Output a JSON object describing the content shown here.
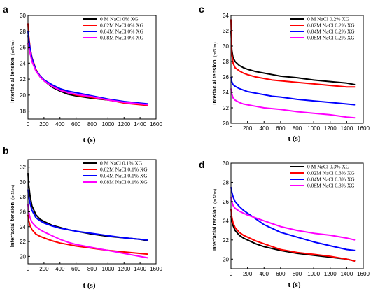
{
  "chart_data": [
    {
      "panel": "a",
      "type": "line",
      "xlabel": "t (s)",
      "ylabel": "Interfacial tension",
      "yunit": "(mN/m)",
      "xlim": [
        0,
        1600
      ],
      "ylim": [
        17,
        30
      ],
      "xticks": [
        0,
        200,
        400,
        600,
        800,
        1000,
        1200,
        1400,
        1600
      ],
      "yticks": [
        18,
        20,
        22,
        24,
        26,
        28,
        30
      ],
      "legend_position": "top-right",
      "series": [
        {
          "name": "0    M NaCl 0% XG",
          "color": "#000000",
          "x": [
            0,
            10,
            25,
            50,
            100,
            150,
            200,
            300,
            400,
            500,
            600,
            800,
            1000,
            1200,
            1400,
            1500
          ],
          "y": [
            27.5,
            26.8,
            25.8,
            24.6,
            23.1,
            22.3,
            21.8,
            21.0,
            20.5,
            20.1,
            19.9,
            19.6,
            19.4,
            19.1,
            18.9,
            18.8
          ]
        },
        {
          "name": "0.02M NaCl 0% XG",
          "color": "#ff0000",
          "x": [
            0,
            10,
            25,
            50,
            100,
            150,
            200,
            300,
            400,
            500,
            600,
            800,
            1000,
            1200,
            1400,
            1500
          ],
          "y": [
            29.0,
            27.4,
            26.0,
            24.7,
            23.2,
            22.4,
            21.9,
            21.2,
            20.7,
            20.3,
            20.0,
            19.7,
            19.4,
            19.0,
            18.8,
            18.7
          ]
        },
        {
          "name": "0.04M NaCl 0% XG",
          "color": "#0000ff",
          "x": [
            0,
            10,
            25,
            50,
            100,
            150,
            200,
            300,
            400,
            500,
            600,
            800,
            1000,
            1200,
            1400,
            1500
          ],
          "y": [
            28.0,
            27.0,
            25.9,
            24.6,
            23.1,
            22.4,
            21.9,
            21.3,
            20.8,
            20.5,
            20.3,
            19.9,
            19.5,
            19.2,
            19.0,
            18.9
          ]
        },
        {
          "name": "0.08M NaCl 0% XG",
          "color": "#ff00ff",
          "x": [
            0,
            10,
            25,
            50,
            100,
            150,
            200,
            300,
            400,
            500,
            600,
            800,
            1000,
            1200,
            1400,
            1500
          ],
          "y": [
            26.5,
            26.0,
            25.3,
            24.2,
            23.0,
            22.3,
            21.8,
            21.1,
            20.6,
            20.3,
            20.1,
            19.8,
            19.4,
            19.1,
            18.9,
            18.8
          ]
        }
      ]
    },
    {
      "panel": "b",
      "type": "line",
      "xlabel": "t (s)",
      "ylabel": "Interfacial tension",
      "yunit": "(mN/m)",
      "xlim": [
        0,
        1600
      ],
      "ylim": [
        19,
        33
      ],
      "xticks": [
        0,
        200,
        400,
        600,
        800,
        1000,
        1200,
        1400,
        1600
      ],
      "yticks": [
        20,
        22,
        24,
        26,
        28,
        30,
        32
      ],
      "legend_position": "top-right",
      "series": [
        {
          "name": "0    M NaCl 0.1% XG",
          "color": "#000000",
          "x": [
            0,
            10,
            25,
            50,
            100,
            150,
            200,
            300,
            400,
            500,
            600,
            800,
            1000,
            1200,
            1400,
            1500
          ],
          "y": [
            31.2,
            29.6,
            28.2,
            26.8,
            25.6,
            25.0,
            24.7,
            24.2,
            23.9,
            23.6,
            23.4,
            23.0,
            22.7,
            22.5,
            22.3,
            22.1
          ]
        },
        {
          "name": "0.02M NaCl 0.1% XG",
          "color": "#ff0000",
          "x": [
            0,
            10,
            25,
            50,
            100,
            150,
            200,
            300,
            400,
            500,
            600,
            800,
            1000,
            1200,
            1400,
            1500
          ],
          "y": [
            25.6,
            24.8,
            24.2,
            23.6,
            23.0,
            22.7,
            22.5,
            22.1,
            21.8,
            21.6,
            21.4,
            21.1,
            20.8,
            20.6,
            20.4,
            20.3
          ]
        },
        {
          "name": "0.04M NaCl 0.1% XG",
          "color": "#0000ff",
          "x": [
            0,
            10,
            25,
            50,
            100,
            150,
            200,
            300,
            400,
            500,
            600,
            800,
            1000,
            1200,
            1400,
            1500
          ],
          "y": [
            29.0,
            28.0,
            27.2,
            26.2,
            25.2,
            24.8,
            24.5,
            24.1,
            23.8,
            23.6,
            23.4,
            23.1,
            22.8,
            22.5,
            22.3,
            22.2
          ]
        },
        {
          "name": "0.08M NaCl 0.1% XG",
          "color": "#ff00ff",
          "x": [
            0,
            10,
            25,
            50,
            100,
            150,
            200,
            300,
            400,
            500,
            600,
            800,
            1000,
            1200,
            1400,
            1500
          ],
          "y": [
            27.0,
            26.0,
            25.2,
            24.6,
            24.0,
            23.6,
            23.3,
            22.8,
            22.3,
            21.9,
            21.6,
            21.2,
            20.8,
            20.4,
            20.0,
            19.8
          ]
        }
      ]
    },
    {
      "panel": "c",
      "type": "line",
      "xlabel": "t (s)",
      "ylabel": "Interfacial tension",
      "yunit": "(mN/m)",
      "xlim": [
        0,
        1600
      ],
      "ylim": [
        20,
        34
      ],
      "xticks": [
        0,
        200,
        400,
        600,
        800,
        1000,
        1200,
        1400,
        1600
      ],
      "yticks": [
        20,
        22,
        24,
        26,
        28,
        30,
        32,
        34
      ],
      "legend_position": "top-right",
      "series": [
        {
          "name": "0    M NaCl 0.2% XG",
          "color": "#000000",
          "x": [
            0,
            10,
            25,
            50,
            100,
            150,
            200,
            300,
            400,
            500,
            600,
            800,
            1000,
            1200,
            1400,
            1500
          ],
          "y": [
            32.0,
            29.5,
            28.5,
            28.0,
            27.5,
            27.2,
            27.0,
            26.7,
            26.5,
            26.3,
            26.1,
            25.9,
            25.6,
            25.4,
            25.2,
            25.0
          ]
        },
        {
          "name": "0.02M NaCl 0.2% XG",
          "color": "#ff0000",
          "x": [
            0,
            10,
            25,
            50,
            100,
            150,
            200,
            300,
            400,
            500,
            600,
            800,
            1000,
            1200,
            1400,
            1500
          ],
          "y": [
            33.5,
            29.0,
            27.8,
            27.2,
            26.8,
            26.5,
            26.3,
            26.0,
            25.8,
            25.6,
            25.5,
            25.3,
            25.1,
            24.9,
            24.7,
            24.7
          ]
        },
        {
          "name": "0.04M NaCl 0.2% XG",
          "color": "#0000ff",
          "x": [
            0,
            10,
            25,
            50,
            100,
            150,
            200,
            300,
            400,
            500,
            600,
            800,
            1000,
            1200,
            1400,
            1500
          ],
          "y": [
            26.0,
            25.4,
            25.0,
            24.8,
            24.5,
            24.3,
            24.1,
            23.9,
            23.7,
            23.5,
            23.4,
            23.1,
            22.9,
            22.7,
            22.5,
            22.4
          ]
        },
        {
          "name": "0.08M NaCl 0.2% XG",
          "color": "#ff00ff",
          "x": [
            0,
            10,
            25,
            50,
            100,
            150,
            200,
            300,
            400,
            500,
            600,
            800,
            1000,
            1200,
            1400,
            1500
          ],
          "y": [
            24.5,
            23.8,
            23.3,
            23.0,
            22.7,
            22.5,
            22.4,
            22.2,
            22.0,
            21.9,
            21.8,
            21.5,
            21.3,
            21.1,
            20.8,
            20.7
          ]
        }
      ]
    },
    {
      "panel": "d",
      "type": "line",
      "xlabel": "t (s)",
      "ylabel": "Interfacial tension",
      "yunit": "(mN/m)",
      "xlim": [
        0,
        1600
      ],
      "ylim": [
        19,
        30
      ],
      "xticks": [
        0,
        200,
        400,
        600,
        800,
        1000,
        1200,
        1400,
        1600
      ],
      "yticks": [
        20,
        22,
        24,
        26,
        28,
        30
      ],
      "legend_position": "top-right",
      "series": [
        {
          "name": "0    M NaCl 0.3% XG",
          "color": "#000000",
          "x": [
            0,
            10,
            25,
            50,
            100,
            150,
            200,
            300,
            400,
            500,
            600,
            800,
            1000,
            1200,
            1400,
            1500
          ],
          "y": [
            24.5,
            24.0,
            23.5,
            23.0,
            22.5,
            22.2,
            22.0,
            21.6,
            21.3,
            21.1,
            20.9,
            20.6,
            20.4,
            20.2,
            20.0,
            19.8
          ]
        },
        {
          "name": "0.02M NaCl 0.3% XG",
          "color": "#ff0000",
          "x": [
            0,
            10,
            25,
            50,
            100,
            150,
            200,
            300,
            400,
            500,
            600,
            800,
            1000,
            1200,
            1400,
            1500
          ],
          "y": [
            25.2,
            24.4,
            23.8,
            23.3,
            22.8,
            22.5,
            22.3,
            21.9,
            21.6,
            21.3,
            21.0,
            20.7,
            20.5,
            20.3,
            20.0,
            19.8
          ]
        },
        {
          "name": "0.04M NaCl 0.3% XG",
          "color": "#0000ff",
          "x": [
            0,
            10,
            25,
            50,
            100,
            150,
            200,
            300,
            400,
            500,
            600,
            800,
            1000,
            1200,
            1400,
            1500
          ],
          "y": [
            27.5,
            27.0,
            26.5,
            26.0,
            25.5,
            25.1,
            24.8,
            24.2,
            23.6,
            23.2,
            22.8,
            22.3,
            21.8,
            21.4,
            21.0,
            20.9
          ]
        },
        {
          "name": "0.08M NaCl 0.3% XG",
          "color": "#ff00ff",
          "x": [
            0,
            10,
            25,
            50,
            100,
            150,
            200,
            300,
            400,
            500,
            600,
            800,
            1000,
            1200,
            1400,
            1500
          ],
          "y": [
            26.5,
            26.0,
            25.6,
            25.3,
            25.0,
            24.8,
            24.6,
            24.3,
            24.0,
            23.7,
            23.4,
            23.0,
            22.7,
            22.5,
            22.2,
            22.0
          ]
        }
      ]
    }
  ]
}
